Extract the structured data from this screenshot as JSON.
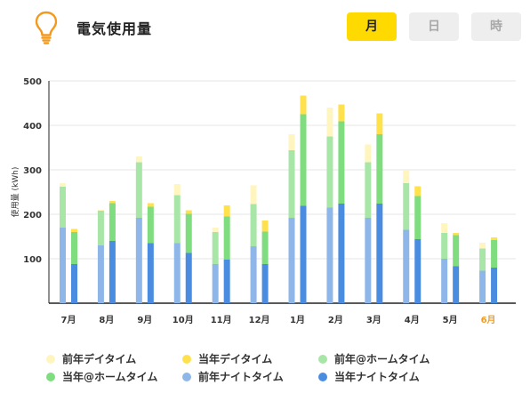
{
  "header": {
    "title": "電気使用量",
    "icon": "lightbulb-icon",
    "accent_color": "#F39A1E",
    "tabs": [
      {
        "label": "月",
        "active": true
      },
      {
        "label": "日",
        "active": false
      },
      {
        "label": "時",
        "active": false
      }
    ]
  },
  "chart_data": {
    "type": "bar",
    "stacked": true,
    "ylabel": "使用量 (kWh)",
    "ylim": [
      0,
      500
    ],
    "yticks": [
      100,
      200,
      300,
      400,
      500
    ],
    "grid": true,
    "legend_position": "bottom",
    "categories": [
      "7月",
      "8月",
      "9月",
      "10月",
      "11月",
      "12月",
      "1月",
      "2月",
      "3月",
      "4月",
      "5月",
      "6月"
    ],
    "highlight_category": "6月",
    "highlight_color": "#F39A1E",
    "groups": [
      {
        "name": "前年",
        "series": [
          {
            "name": "前年ナイトタイム",
            "color": "#8EB6E8",
            "values": [
              170,
              130,
              192,
              135,
              88,
              128,
              192,
              215,
              192,
              165,
              100,
              73
            ]
          },
          {
            "name": "前年@ホームタイム",
            "color": "#A8E6A8",
            "values": [
              92,
              78,
              125,
              108,
              72,
              95,
              152,
              160,
              125,
              105,
              58,
              50
            ]
          },
          {
            "name": "前年デイタイム",
            "color": "#FFF5BF",
            "values": [
              8,
              2,
              13,
              25,
              10,
              42,
              36,
              65,
              40,
              30,
              22,
              13
            ]
          }
        ]
      },
      {
        "name": "当年",
        "series": [
          {
            "name": "当年ナイトタイム",
            "color": "#4A8DE0",
            "values": [
              88,
              140,
              135,
              113,
              98,
              88,
              219,
              224,
              224,
              144,
              83,
              80
            ]
          },
          {
            "name": "当年@ホームタイム",
            "color": "#7FDD7F",
            "values": [
              72,
              85,
              82,
              88,
              97,
              73,
              206,
              185,
              156,
              97,
              70,
              62
            ]
          },
          {
            "name": "当年デイタイム",
            "color": "#FFE14D",
            "values": [
              7,
              5,
              8,
              8,
              25,
              25,
              42,
              38,
              47,
              22,
              5,
              6
            ]
          }
        ]
      }
    ]
  },
  "legend": [
    {
      "label": "前年デイタイム",
      "color": "#FFF5BF"
    },
    {
      "label": "当年デイタイム",
      "color": "#FFE14D"
    },
    {
      "label": "前年@ホームタイム",
      "color": "#A8E6A8"
    },
    {
      "label": "当年@ホームタイム",
      "color": "#7FDD7F"
    },
    {
      "label": "前年ナイトタイム",
      "color": "#8EB6E8"
    },
    {
      "label": "当年ナイトタイム",
      "color": "#4A8DE0"
    }
  ]
}
